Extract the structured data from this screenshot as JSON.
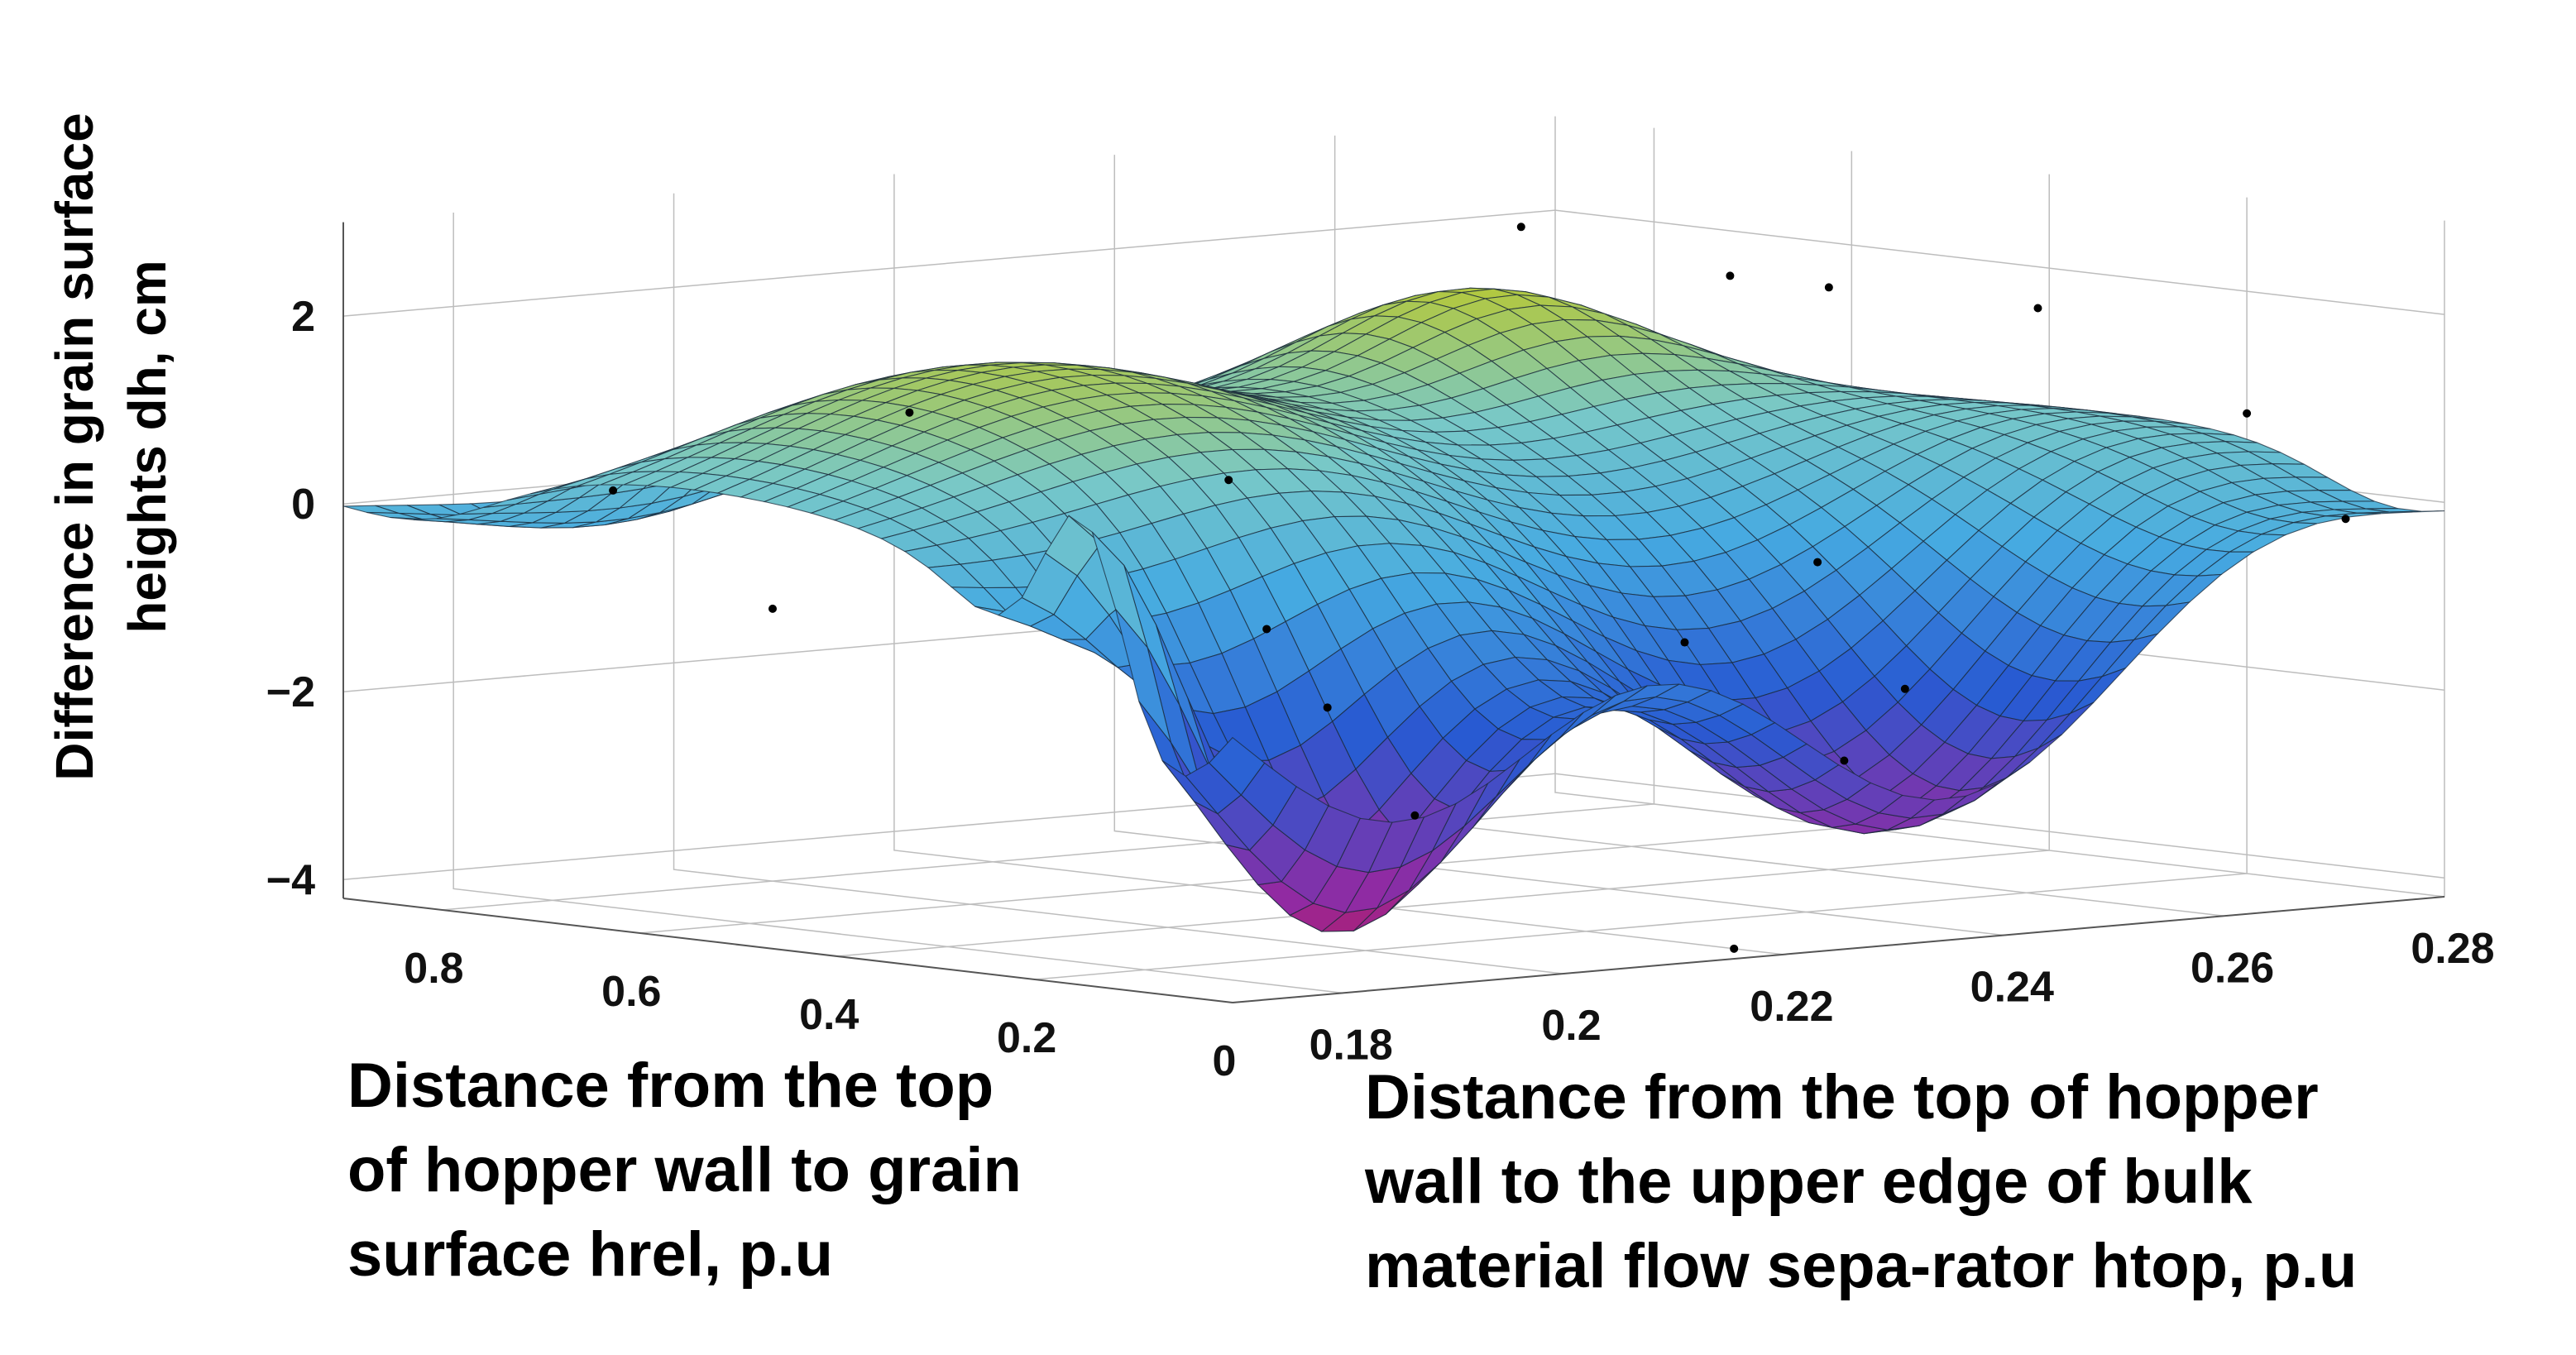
{
  "chart_data": {
    "type": "surface",
    "zlabel_lines": [
      "Difference in grain surface",
      "heights dh, cm"
    ],
    "xlabel_lines": [
      "Distance from the top",
      "of hopper wall to grain",
      "surface hrel, p.u"
    ],
    "ylabel_lines": [
      "Distance from the top of hopper",
      "wall to the upper edge of bulk",
      "material flow sepa-rator htop, p.u"
    ],
    "x_ticks": [
      "0.8",
      "0.6",
      "0.4",
      "0.2",
      "0"
    ],
    "y_ticks": [
      "0.18",
      "0.2",
      "0.22",
      "0.24",
      "0.26",
      "0.28"
    ],
    "z_ticks": [
      "2",
      "0",
      "−2",
      "−4"
    ],
    "xlim": [
      0,
      0.9
    ],
    "ylim": [
      0.17,
      0.28
    ],
    "zlim": [
      -4.5,
      3
    ],
    "grid": true,
    "colormap": "jet",
    "measured_points": [
      {
        "x": 0.85,
        "y": 0.19,
        "z": 0.0
      },
      {
        "x": 0.8,
        "y": 0.2,
        "z": -1.3
      },
      {
        "x": 0.55,
        "y": 0.19,
        "z": 1.2
      },
      {
        "x": 0.45,
        "y": 0.21,
        "z": 0.4
      },
      {
        "x": 0.3,
        "y": 0.2,
        "z": -0.9
      },
      {
        "x": 0.35,
        "y": 0.21,
        "z": -1.9
      },
      {
        "x": 0.15,
        "y": 0.2,
        "z": -2.7
      },
      {
        "x": 0.1,
        "y": 0.22,
        "z": -1.0
      },
      {
        "x": 0.05,
        "y": 0.23,
        "z": -2.3
      },
      {
        "x": 0.1,
        "y": 0.24,
        "z": -1.7
      },
      {
        "x": 0.3,
        "y": 0.25,
        "z": -0.7
      },
      {
        "x": 0.6,
        "y": 0.25,
        "z": 2.5
      },
      {
        "x": 0.5,
        "y": 0.26,
        "z": 2.0
      },
      {
        "x": 0.4,
        "y": 0.26,
        "z": 2.0
      },
      {
        "x": 0.3,
        "y": 0.27,
        "z": 1.8
      },
      {
        "x": 0.2,
        "y": 0.28,
        "z": 0.7
      },
      {
        "x": 0.1,
        "y": 0.28,
        "z": -0.3
      },
      {
        "x": 0.05,
        "y": 0.22,
        "z": -4.2
      }
    ]
  }
}
